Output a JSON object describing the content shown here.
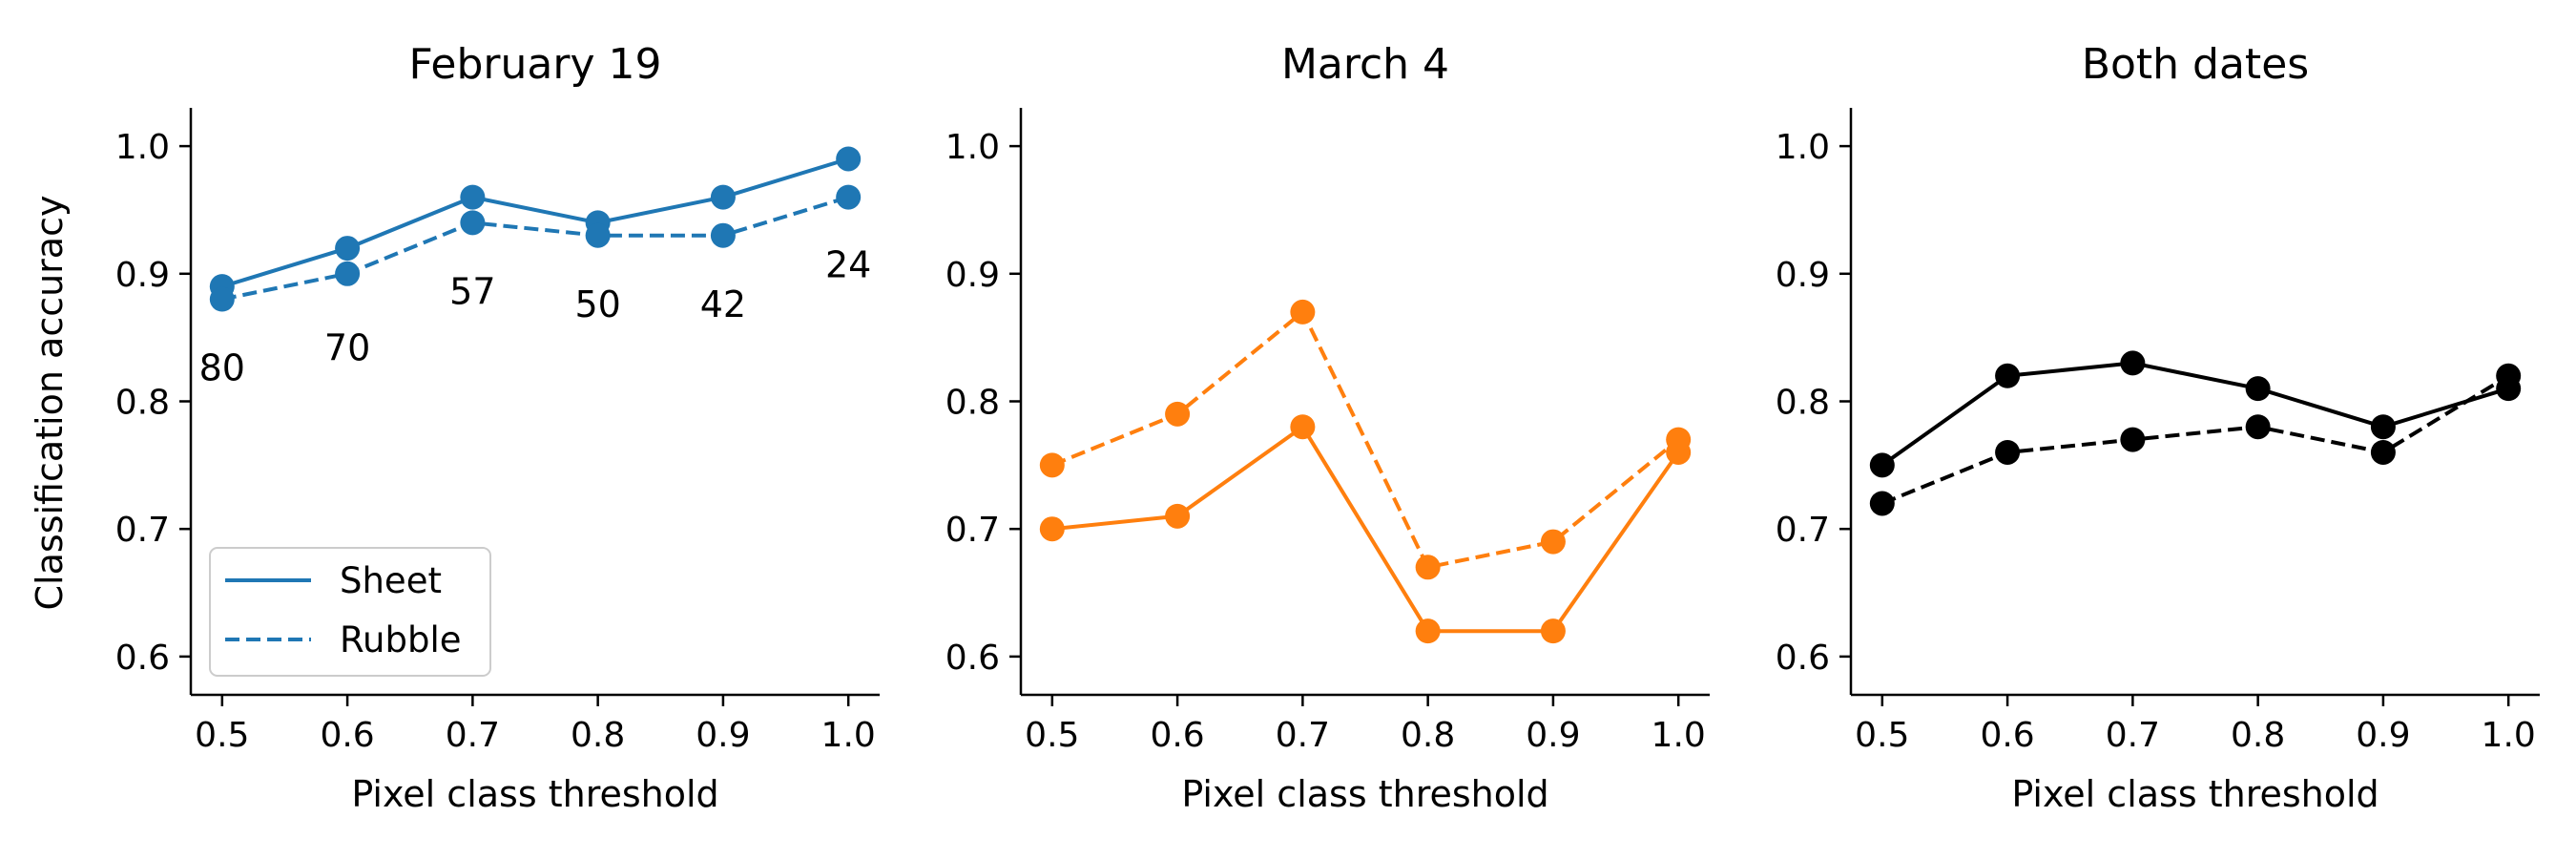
{
  "figure": {
    "shared_ylabel": "Classification accuracy",
    "legend": {
      "placement": "lower-left",
      "entries": [
        "Sheet",
        "Rubble"
      ]
    }
  },
  "chart_data": [
    {
      "type": "line",
      "title": "February 19",
      "xlabel": "Pixel class threshold",
      "ylabel": "Classification accuracy",
      "x": [
        0.5,
        0.6,
        0.7,
        0.8,
        0.9,
        1.0
      ],
      "xticks": [
        "0.5",
        "0.6",
        "0.7",
        "0.8",
        "0.9",
        "1.0"
      ],
      "yticks": [
        "0.6",
        "0.7",
        "0.8",
        "0.9",
        "1.0"
      ],
      "xlim": [
        0.475,
        1.025
      ],
      "ylim": [
        0.57,
        1.03
      ],
      "color": "#1f77b4",
      "series": [
        {
          "name": "Sheet",
          "style": "solid",
          "values": [
            0.89,
            0.92,
            0.96,
            0.94,
            0.96,
            0.99
          ]
        },
        {
          "name": "Rubble",
          "style": "dashed",
          "values": [
            0.88,
            0.9,
            0.94,
            0.93,
            0.93,
            0.96
          ]
        }
      ],
      "annotations": [
        {
          "x": 0.5,
          "y": 0.826,
          "text": "80"
        },
        {
          "x": 0.6,
          "y": 0.842,
          "text": "70"
        },
        {
          "x": 0.7,
          "y": 0.886,
          "text": "57"
        },
        {
          "x": 0.8,
          "y": 0.876,
          "text": "50"
        },
        {
          "x": 0.9,
          "y": 0.876,
          "text": "42"
        },
        {
          "x": 1.0,
          "y": 0.907,
          "text": "24"
        }
      ],
      "grid": false
    },
    {
      "type": "line",
      "title": "March 4",
      "xlabel": "Pixel class threshold",
      "x": [
        0.5,
        0.6,
        0.7,
        0.8,
        0.9,
        1.0
      ],
      "xticks": [
        "0.5",
        "0.6",
        "0.7",
        "0.8",
        "0.9",
        "1.0"
      ],
      "yticks": [
        "0.6",
        "0.7",
        "0.8",
        "0.9",
        "1.0"
      ],
      "xlim": [
        0.475,
        1.025
      ],
      "ylim": [
        0.57,
        1.03
      ],
      "color": "#ff7f0e",
      "series": [
        {
          "name": "Sheet",
          "style": "solid",
          "values": [
            0.7,
            0.71,
            0.78,
            0.62,
            0.62,
            0.76
          ]
        },
        {
          "name": "Rubble",
          "style": "dashed",
          "values": [
            0.75,
            0.79,
            0.87,
            0.67,
            0.69,
            0.77
          ]
        }
      ],
      "grid": false
    },
    {
      "type": "line",
      "title": "Both dates",
      "xlabel": "Pixel class threshold",
      "x": [
        0.5,
        0.6,
        0.7,
        0.8,
        0.9,
        1.0
      ],
      "xticks": [
        "0.5",
        "0.6",
        "0.7",
        "0.8",
        "0.9",
        "1.0"
      ],
      "yticks": [
        "0.6",
        "0.7",
        "0.8",
        "0.9",
        "1.0"
      ],
      "xlim": [
        0.475,
        1.025
      ],
      "ylim": [
        0.57,
        1.03
      ],
      "color": "#000000",
      "series": [
        {
          "name": "Sheet",
          "style": "solid",
          "values": [
            0.75,
            0.82,
            0.83,
            0.81,
            0.78,
            0.81
          ]
        },
        {
          "name": "Rubble",
          "style": "dashed",
          "values": [
            0.72,
            0.76,
            0.77,
            0.78,
            0.76,
            0.82
          ]
        }
      ],
      "grid": false
    }
  ]
}
